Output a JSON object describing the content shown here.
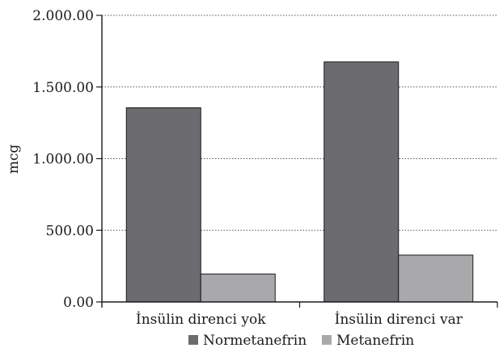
{
  "chart_data": {
    "type": "bar",
    "categories": [
      "İnsülin direnci yok",
      "İnsülin direnci var"
    ],
    "series": [
      {
        "name": "Normetanefrin",
        "values": [
          1355,
          1675
        ],
        "color": "#6b6b70"
      },
      {
        "name": "Metanefrin",
        "values": [
          195,
          327
        ],
        "color": "#a9a9ab"
      }
    ],
    "title": "",
    "xlabel": "",
    "ylabel": "mcg",
    "ylim": [
      0,
      2000
    ],
    "yticks": [
      0,
      500,
      1000,
      1500,
      2000
    ],
    "ytick_labels": [
      "0.00",
      "500.00",
      "1.000.00",
      "1.500.00",
      "2.000.00"
    ],
    "grid": "horizontal dotted",
    "legend_position": "bottom-center"
  }
}
